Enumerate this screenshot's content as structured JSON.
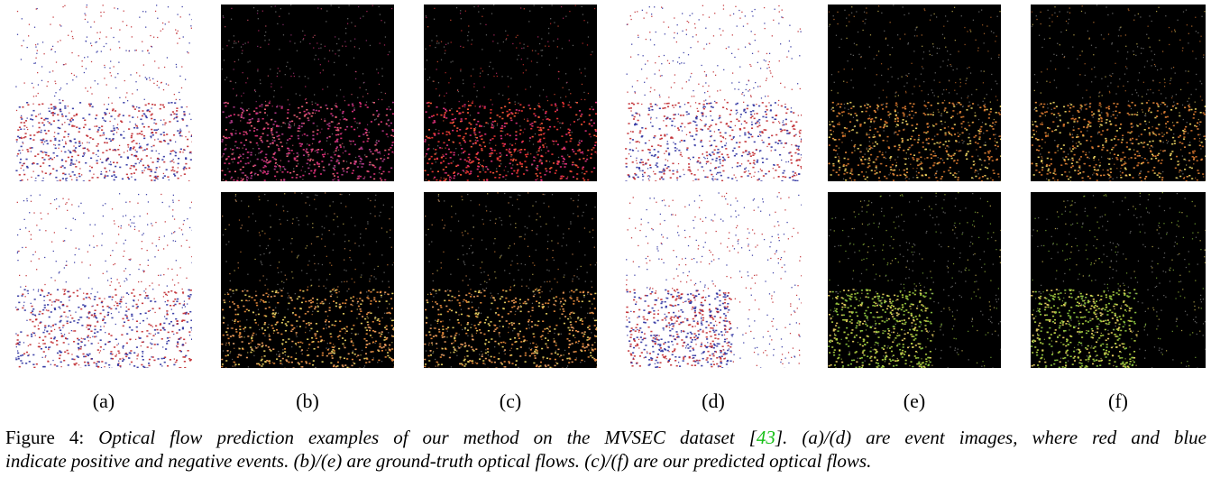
{
  "figure": {
    "subfigure_labels": [
      "(a)",
      "(b)",
      "(c)",
      "(d)",
      "(e)",
      "(f)"
    ],
    "caption": {
      "label": "Figure 4:",
      "text_before_cite": "Optical flow prediction examples of our method on the MVSEC dataset [",
      "cite": "43",
      "text_after_cite": "].  (a)/(d) are event images, where red and blue",
      "line2": "indicate positive and negative events.  (b)/(e) are ground-truth optical flows.  (c)/(f) are our predicted optical flows.",
      "cite_color": "#16c016"
    },
    "panel_colors": {
      "event_background": "#ffffff",
      "event_positive": "#c0282d",
      "event_negative": "#2a2f9e",
      "flow_background": "#000000",
      "flow_magenta": "#e0307a",
      "flow_red": "#ee3535",
      "flow_orange": "#e88a3a",
      "flow_yellow": "#e8d060",
      "flow_green": "#8cc63f"
    }
  }
}
